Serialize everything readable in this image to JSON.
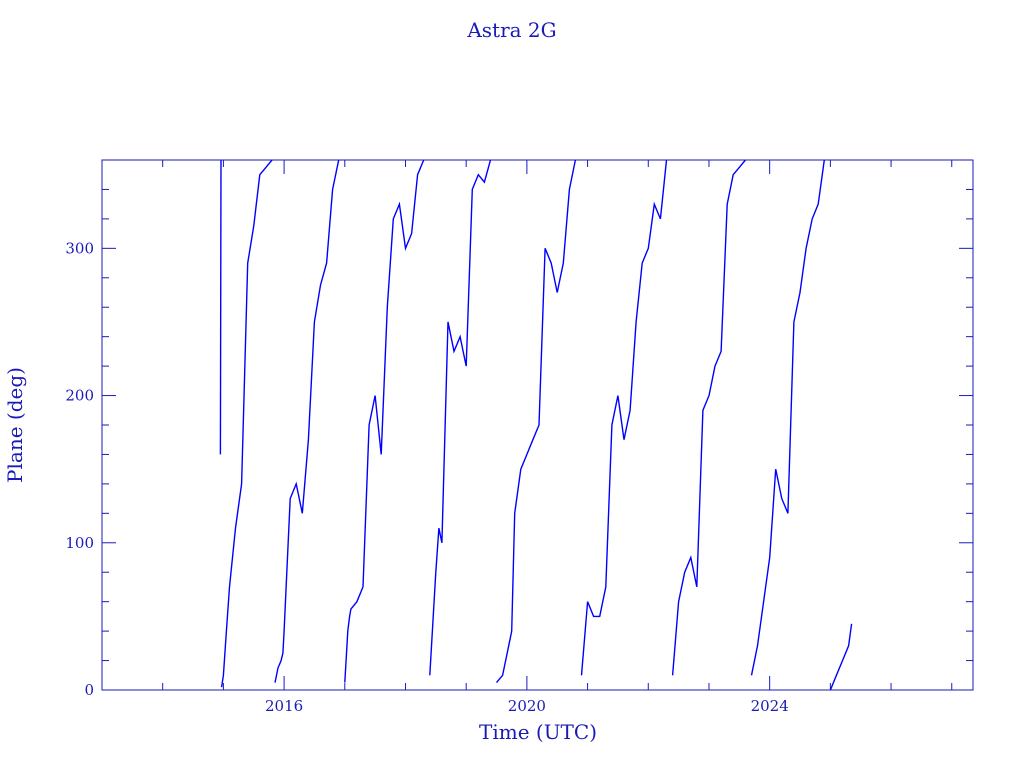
{
  "chart_data": {
    "type": "line",
    "title": "Astra 2G",
    "xlabel": "Time (UTC)",
    "ylabel": "Plane (deg)",
    "xlim": [
      2013.0,
      2027.35
    ],
    "ylim": [
      0,
      360
    ],
    "x_ticks": [
      "2016",
      "2020",
      "2024"
    ],
    "y_ticks": [
      "0",
      "100",
      "200",
      "300"
    ],
    "grid": false,
    "color": "#0000ff",
    "series": [
      {
        "values_note": "plane angle wraps from 360 to 0",
        "x": [
          2014.95,
          2014.96,
          2014.97,
          2015.0,
          2015.05,
          2015.1,
          2015.2,
          2015.3,
          2015.4,
          2015.5,
          2015.6,
          2015.7,
          2015.8,
          2015.85,
          2015.9,
          2015.95,
          2015.98,
          2016.0,
          2016.1,
          2016.2,
          2016.3,
          2016.4,
          2016.5,
          2016.6,
          2016.7,
          2016.8,
          2016.9,
          2017.0,
          2017.05,
          2017.08,
          2017.1,
          2017.2,
          2017.3,
          2017.4,
          2017.5,
          2017.6,
          2017.7,
          2017.8,
          2017.9,
          2018.0,
          2018.1,
          2018.2,
          2018.3,
          2018.4,
          2018.5,
          2018.55,
          2018.6,
          2018.7,
          2018.8,
          2018.9,
          2019.0,
          2019.1,
          2019.2,
          2019.3,
          2019.4,
          2019.5,
          2019.6,
          2019.7,
          2019.75,
          2019.8,
          2019.9,
          2020.0,
          2020.1,
          2020.2,
          2020.3,
          2020.4,
          2020.5,
          2020.6,
          2020.7,
          2020.8,
          2020.9,
          2021.0,
          2021.1,
          2021.2,
          2021.3,
          2021.4,
          2021.5,
          2021.6,
          2021.7,
          2021.8,
          2021.9,
          2022.0,
          2022.1,
          2022.2,
          2022.3,
          2022.4,
          2022.5,
          2022.6,
          2022.7,
          2022.8,
          2022.9,
          2023.0,
          2023.1,
          2023.2,
          2023.3,
          2023.4,
          2023.5,
          2023.6,
          2023.7,
          2023.8,
          2023.9,
          2024.0,
          2024.1,
          2024.2,
          2024.3,
          2024.4,
          2024.5,
          2024.6,
          2024.7,
          2024.8,
          2024.9,
          2025.0,
          2025.1,
          2025.2,
          2025.3,
          2025.35
        ],
        "y": [
          160,
          360,
          2,
          10,
          40,
          70,
          110,
          140,
          290,
          315,
          350,
          355,
          360,
          5,
          15,
          20,
          25,
          40,
          130,
          140,
          120,
          170,
          250,
          275,
          290,
          340,
          360,
          5,
          40,
          50,
          55,
          60,
          70,
          180,
          200,
          160,
          260,
          320,
          330,
          300,
          310,
          350,
          360,
          10,
          80,
          110,
          100,
          250,
          230,
          240,
          220,
          340,
          350,
          345,
          360,
          5,
          10,
          30,
          40,
          120,
          150,
          160,
          170,
          180,
          300,
          290,
          270,
          290,
          340,
          360,
          10,
          60,
          50,
          50,
          70,
          180,
          200,
          170,
          190,
          250,
          290,
          300,
          330,
          320,
          360,
          10,
          60,
          80,
          90,
          70,
          190,
          200,
          220,
          230,
          330,
          350,
          355,
          360,
          10,
          30,
          60,
          90,
          150,
          130,
          120,
          250,
          270,
          300,
          320,
          330,
          360,
          0,
          10,
          20,
          30,
          45
        ]
      }
    ]
  }
}
